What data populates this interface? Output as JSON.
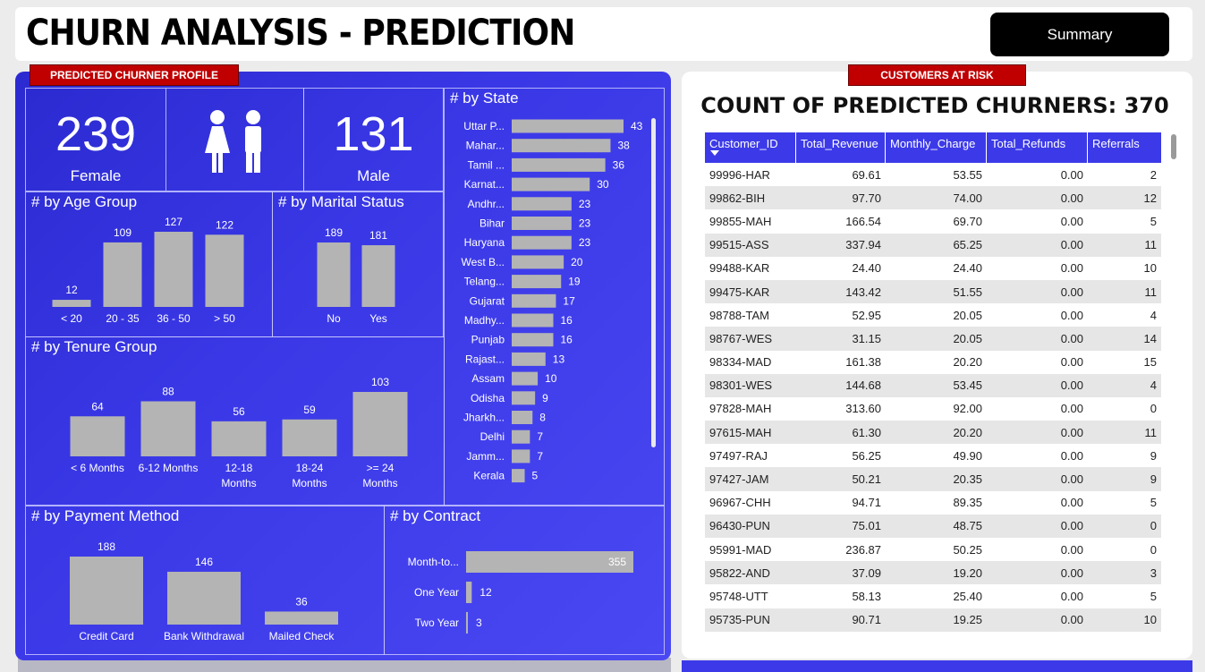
{
  "header": {
    "title": "CHURN ANALYSIS - PREDICTION",
    "summary_button": "Summary"
  },
  "left": {
    "tag": "PREDICTED CHURNER PROFILE",
    "female": {
      "value": "239",
      "label": "Female"
    },
    "male": {
      "value": "131",
      "label": "Male"
    }
  },
  "right": {
    "tag": "CUSTOMERS AT RISK",
    "count_title": "COUNT OF PREDICTED CHURNERS: 370",
    "columns": [
      "Customer_ID",
      "Total_Revenue",
      "Monthly_Charge",
      "Total_Refunds",
      "Referrals"
    ],
    "rows": [
      [
        "99996-HAR",
        "69.61",
        "53.55",
        "0.00",
        "2"
      ],
      [
        "99862-BIH",
        "97.70",
        "74.00",
        "0.00",
        "12"
      ],
      [
        "99855-MAH",
        "166.54",
        "69.70",
        "0.00",
        "5"
      ],
      [
        "99515-ASS",
        "337.94",
        "65.25",
        "0.00",
        "11"
      ],
      [
        "99488-KAR",
        "24.40",
        "24.40",
        "0.00",
        "10"
      ],
      [
        "99475-KAR",
        "143.42",
        "51.55",
        "0.00",
        "11"
      ],
      [
        "98788-TAM",
        "52.95",
        "20.05",
        "0.00",
        "4"
      ],
      [
        "98767-WES",
        "31.15",
        "20.05",
        "0.00",
        "14"
      ],
      [
        "98334-MAD",
        "161.38",
        "20.20",
        "0.00",
        "15"
      ],
      [
        "98301-WES",
        "144.68",
        "53.45",
        "0.00",
        "4"
      ],
      [
        "97828-MAH",
        "313.60",
        "92.00",
        "0.00",
        "0"
      ],
      [
        "97615-MAH",
        "61.30",
        "20.20",
        "0.00",
        "11"
      ],
      [
        "97497-RAJ",
        "56.25",
        "49.90",
        "0.00",
        "9"
      ],
      [
        "97427-JAM",
        "50.21",
        "20.35",
        "0.00",
        "9"
      ],
      [
        "96967-CHH",
        "94.71",
        "89.35",
        "0.00",
        "5"
      ],
      [
        "96430-PUN",
        "75.01",
        "48.75",
        "0.00",
        "0"
      ],
      [
        "95991-MAD",
        "236.87",
        "50.25",
        "0.00",
        "0"
      ],
      [
        "95822-AND",
        "37.09",
        "19.20",
        "0.00",
        "3"
      ],
      [
        "95748-UTT",
        "58.13",
        "25.40",
        "0.00",
        "5"
      ],
      [
        "95735-PUN",
        "90.71",
        "19.25",
        "0.00",
        "10"
      ]
    ]
  },
  "colors": {
    "panel": "#3a38e6",
    "bar": "#b4b4b4",
    "tag": "#c00000",
    "table_header": "#3c3ae8"
  },
  "chart_data": [
    {
      "id": "age",
      "type": "bar",
      "title": "# by Age Group",
      "categories": [
        "< 20",
        "20 - 35",
        "36 - 50",
        "> 50"
      ],
      "values": [
        12,
        109,
        127,
        122
      ]
    },
    {
      "id": "marital",
      "type": "bar",
      "title": "# by Marital Status",
      "categories": [
        "No",
        "Yes"
      ],
      "values": [
        189,
        181
      ]
    },
    {
      "id": "tenure",
      "type": "bar",
      "title": "# by Tenure Group",
      "categories": [
        "< 6 Months",
        "6-12 Months",
        "12-18 Months",
        "18-24 Months",
        ">= 24 Months"
      ],
      "values": [
        64,
        88,
        56,
        59,
        103
      ]
    },
    {
      "id": "payment",
      "type": "bar",
      "title": "# by Payment Method",
      "categories": [
        "Credit Card",
        "Bank Withdrawal",
        "Mailed Check"
      ],
      "values": [
        188,
        146,
        36
      ]
    },
    {
      "id": "contract",
      "type": "bar",
      "orientation": "horizontal",
      "title": "# by Contract",
      "categories": [
        "Month-to...",
        "One Year",
        "Two Year"
      ],
      "values": [
        355,
        12,
        3
      ]
    },
    {
      "id": "state",
      "type": "bar",
      "orientation": "horizontal",
      "title": "# by State",
      "categories": [
        "Uttar P...",
        "Mahar...",
        "Tamil ...",
        "Karnat...",
        "Andhr...",
        "Bihar",
        "Haryana",
        "West B...",
        "Telang...",
        "Gujarat",
        "Madhy...",
        "Punjab",
        "Rajast...",
        "Assam",
        "Odisha",
        "Jharkh...",
        "Delhi",
        "Jamm...",
        "Kerala"
      ],
      "values": [
        43,
        38,
        36,
        30,
        23,
        23,
        23,
        20,
        19,
        17,
        16,
        16,
        13,
        10,
        9,
        8,
        7,
        7,
        5
      ]
    }
  ]
}
